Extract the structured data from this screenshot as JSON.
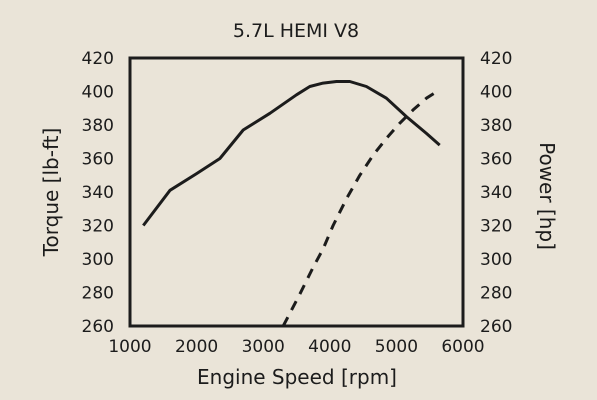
{
  "chart_data": {
    "type": "line",
    "title": "5.7L HEMI V8",
    "xlabel": "Engine Speed [rpm]",
    "ylabel_left": "Torque [lb-ft]",
    "ylabel_right": "Power [hp]",
    "xlim": [
      1000,
      6000
    ],
    "ylim_left": [
      260,
      420
    ],
    "ylim_right": [
      260,
      420
    ],
    "x_ticks": [
      "1000",
      "2000",
      "3000",
      "4000",
      "5000",
      "6000"
    ],
    "y_ticks_left": [
      "260",
      "280",
      "300",
      "320",
      "340",
      "360",
      "380",
      "400",
      "420"
    ],
    "y_ticks_right": [
      "260",
      "280",
      "300",
      "320",
      "340",
      "360",
      "380",
      "400",
      "420"
    ],
    "grid": false,
    "legend": "none",
    "series": [
      {
        "axis": "left",
        "style": "solid",
        "color": "#1c1c1c",
        "x": [
          1200,
          1600,
          2000,
          2350,
          2700,
          3100,
          3500,
          3700,
          3900,
          4100,
          4300,
          4550,
          4850,
          5150,
          5450,
          5650
        ],
        "y": [
          320,
          341,
          351,
          360,
          377,
          387,
          398,
          403,
          405,
          406,
          406,
          403,
          396,
          385,
          375,
          368
        ]
      },
      {
        "axis": "right",
        "style": "dashed",
        "color": "#1c1c1c",
        "x": [
          3300,
          3550,
          3750,
          3900,
          4050,
          4250,
          4450,
          4650,
          4850,
          5050,
          5250,
          5450,
          5650
        ],
        "y": [
          260,
          279,
          295,
          306,
          320,
          336,
          350,
          362,
          372,
          381,
          389,
          396,
          401
        ]
      }
    ]
  }
}
